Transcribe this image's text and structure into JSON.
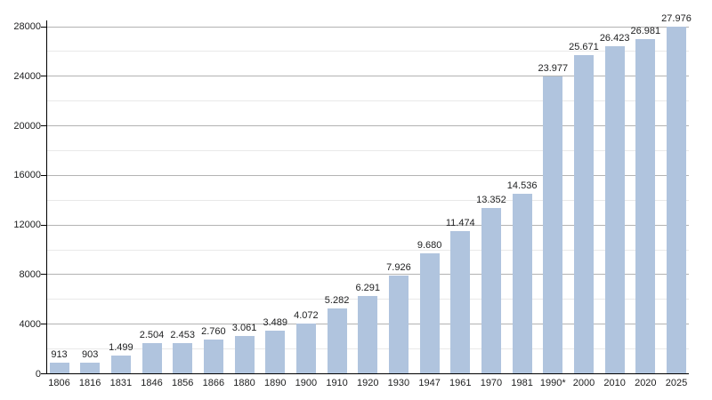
{
  "chart_data": {
    "type": "bar",
    "title": "",
    "xlabel": "",
    "ylabel": "",
    "categories": [
      "1806",
      "1816",
      "1831",
      "1846",
      "1856",
      "1866",
      "1880",
      "1890",
      "1900",
      "1910",
      "1920",
      "1930",
      "1947",
      "1961",
      "1970",
      "1981",
      "1990*",
      "2000",
      "2010",
      "2020",
      "2025"
    ],
    "values": [
      913,
      903,
      1499,
      2504,
      2453,
      2760,
      3061,
      3489,
      4072,
      5282,
      6291,
      7926,
      9680,
      11474,
      13352,
      14536,
      23977,
      25671,
      26423,
      26981,
      27976
    ],
    "value_labels": [
      "913",
      "903",
      "1.499",
      "2.504",
      "2.453",
      "2.760",
      "3.061",
      "3.489",
      "4.072",
      "5.282",
      "6.291",
      "7.926",
      "9.680",
      "11.474",
      "13.352",
      "14.536",
      "23.977",
      "25.671",
      "26.423",
      "26.981",
      "27.976"
    ],
    "ylim": [
      0,
      28000
    ],
    "y_major_ticks": [
      0,
      4000,
      8000,
      12000,
      16000,
      20000,
      24000,
      28000
    ],
    "y_tick_labels": [
      "0",
      "4000",
      "8000",
      "12000",
      "16000",
      "20000",
      "24000",
      "28000"
    ],
    "y_minor_step": 2000,
    "grid": true,
    "legend_position": "none",
    "colors": {
      "bar_fill": "#b0c4de",
      "major_grid": "#b3b3b3",
      "minor_grid": "#e9e9e9",
      "axis": "#000000",
      "text": "#202122",
      "background": "#ffffff"
    }
  }
}
